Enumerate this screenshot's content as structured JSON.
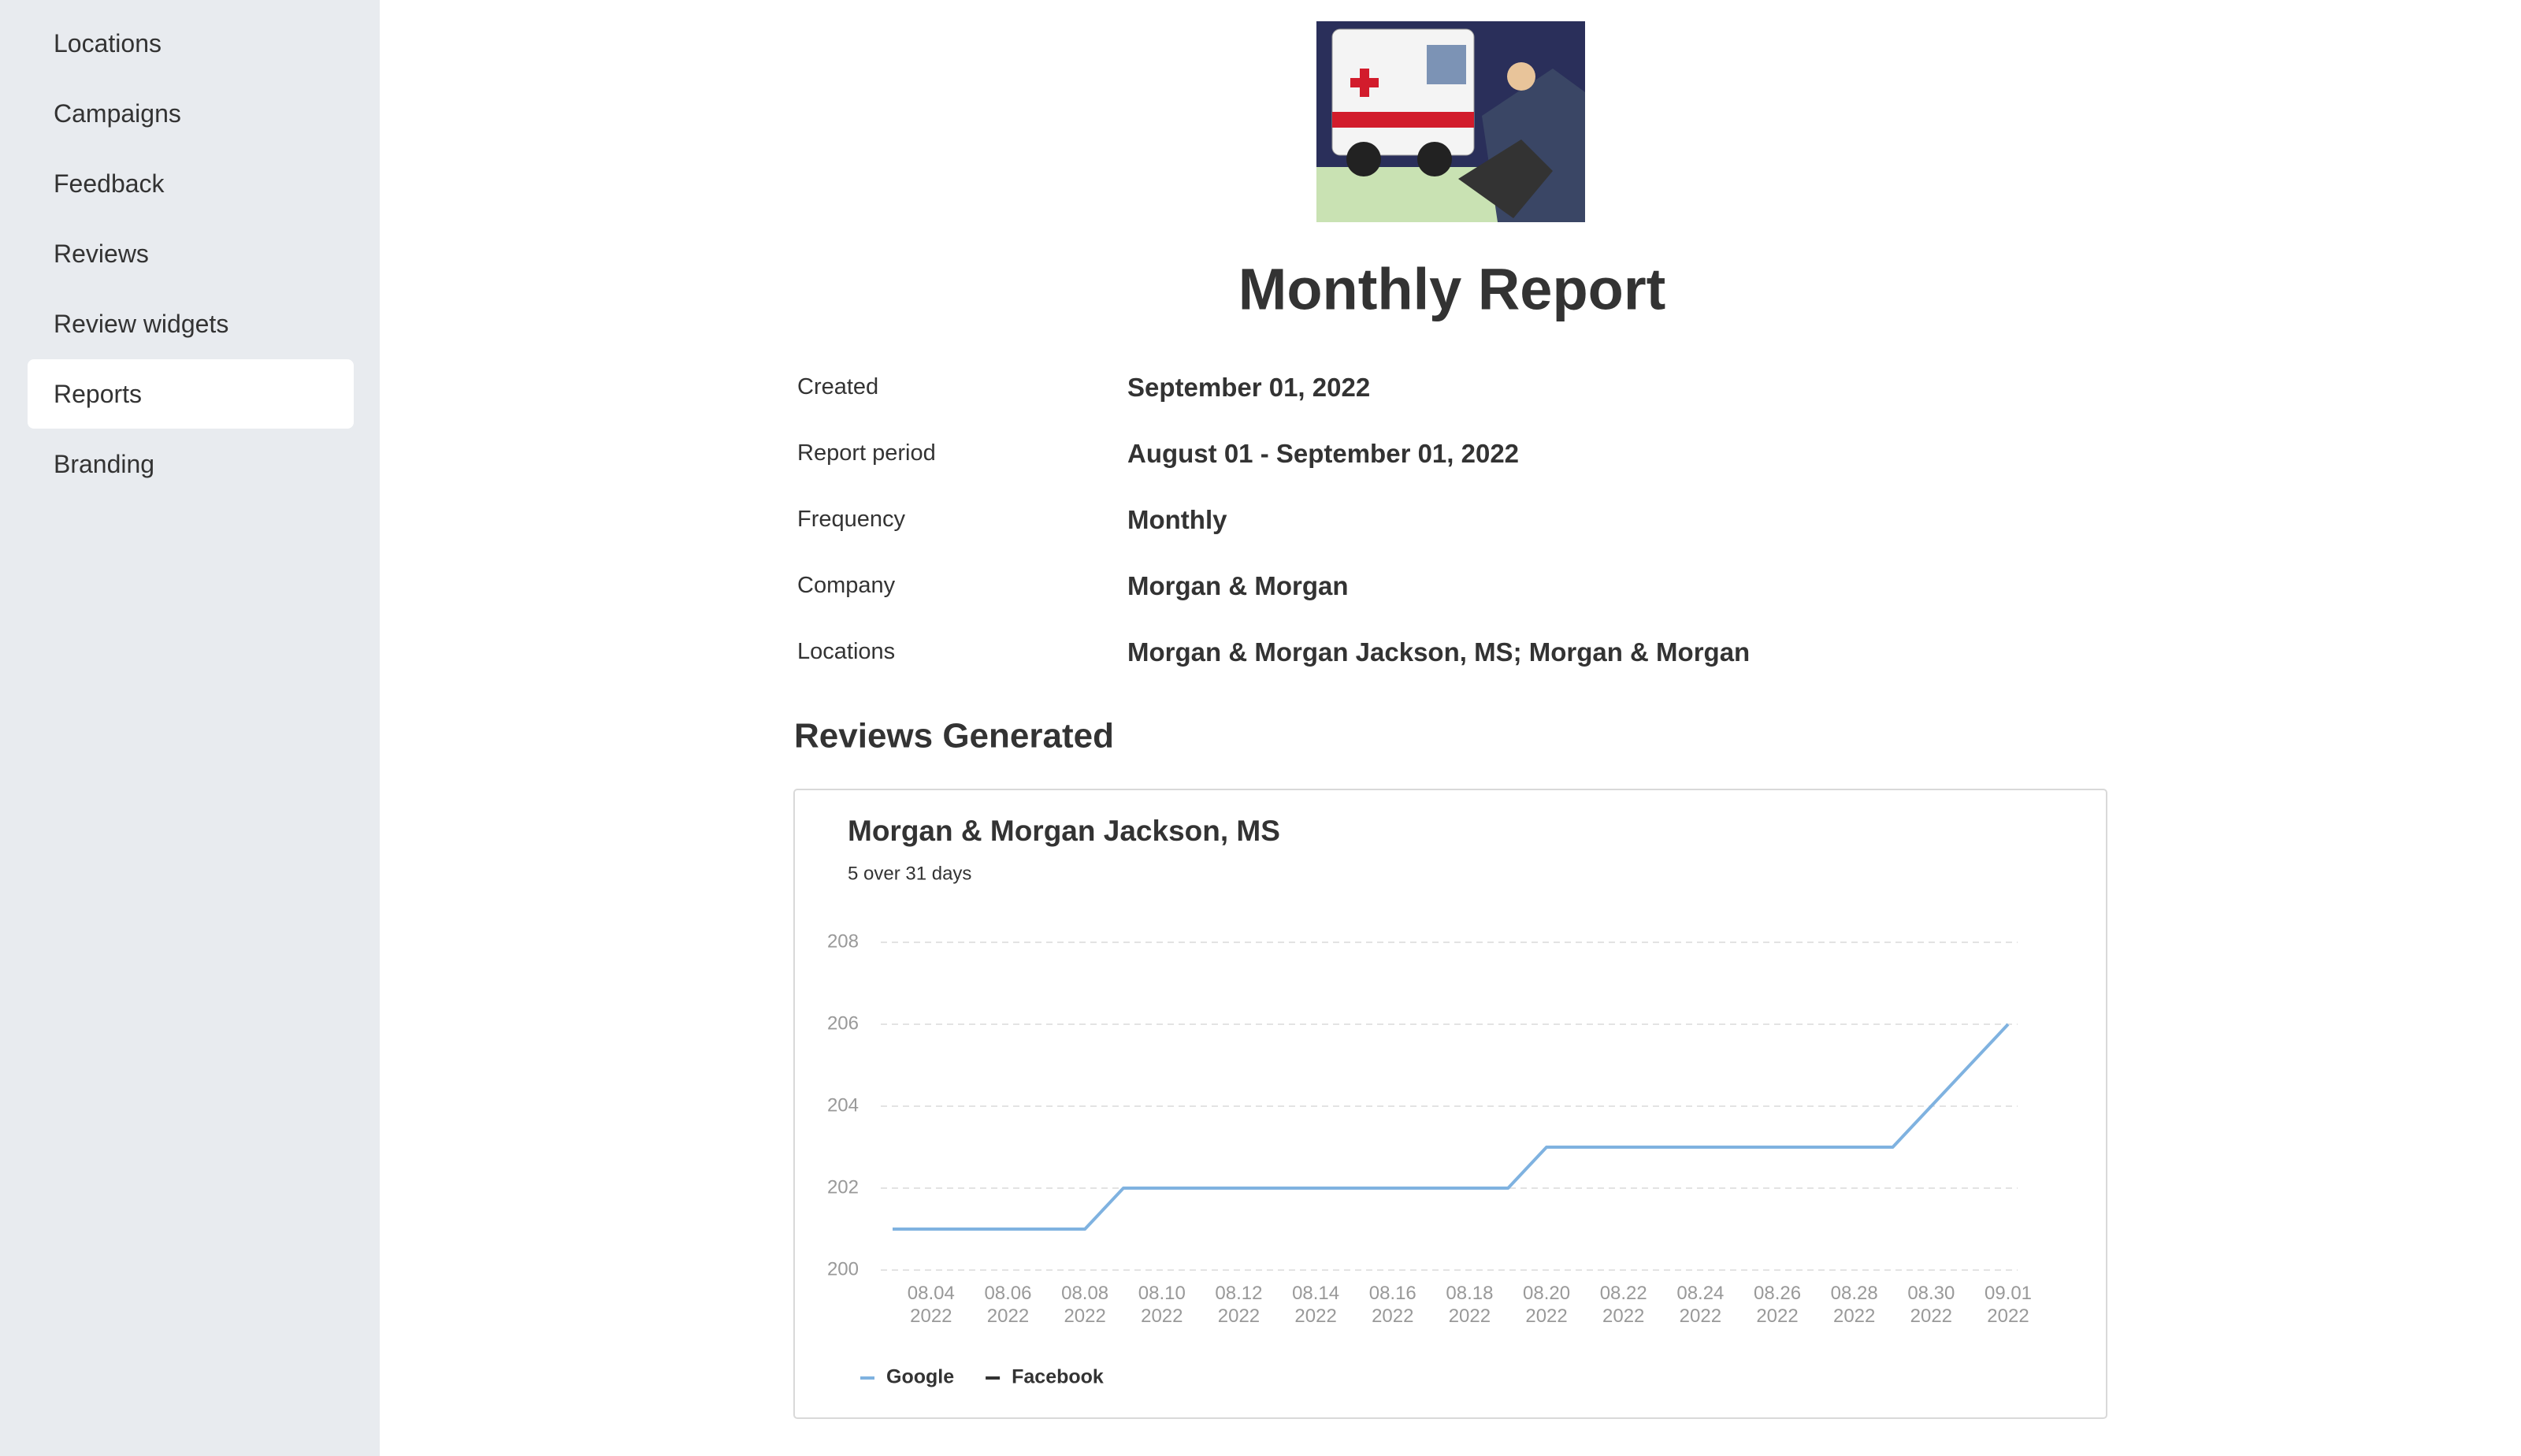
{
  "sidebar": {
    "items": [
      "Locations",
      "Campaigns",
      "Feedback",
      "Reviews",
      "Review widgets",
      "Reports",
      "Branding"
    ],
    "active": 5
  },
  "report": {
    "title": "Monthly Report",
    "rows": [
      {
        "label": "Created",
        "value": "September 01, 2022"
      },
      {
        "label": "Report period",
        "value": "August 01 - September 01, 2022"
      },
      {
        "label": "Frequency",
        "value": "Monthly"
      },
      {
        "label": "Company",
        "value": "Morgan & Morgan"
      },
      {
        "label": "Locations",
        "value": "Morgan & Morgan Jackson, MS; Morgan & Morgan"
      }
    ],
    "section": "Reviews Generated"
  },
  "chart_data": {
    "type": "line",
    "title": "Morgan & Morgan Jackson, MS",
    "subtitle": "5 over 31 days",
    "categories": [
      null,
      "08.04 2022",
      null,
      "08.06 2022",
      null,
      "08.08 2022",
      null,
      "08.10 2022",
      null,
      "08.12 2022",
      null,
      "08.14 2022",
      null,
      "08.16 2022",
      null,
      "08.18 2022",
      null,
      "08.20 2022",
      null,
      "08.22 2022",
      null,
      "08.24 2022",
      null,
      "08.26 2022",
      null,
      "08.28 2022",
      null,
      "08.30 2022",
      null,
      "09.01 2022"
    ],
    "series": [
      {
        "name": "Google",
        "color": "#7fb2e0",
        "values": [
          201,
          201,
          201,
          201,
          201,
          201,
          202,
          202,
          202,
          202,
          202,
          202,
          202,
          202,
          202,
          202,
          202,
          203,
          203,
          203,
          203,
          203,
          203,
          203,
          203,
          203,
          203,
          204,
          205,
          206
        ]
      },
      {
        "name": "Facebook",
        "color": "#333333"
      }
    ],
    "ylim": [
      200,
      208
    ],
    "yticks": [
      200,
      202,
      204,
      206,
      208
    ],
    "grid": true,
    "legend": "bottom"
  }
}
